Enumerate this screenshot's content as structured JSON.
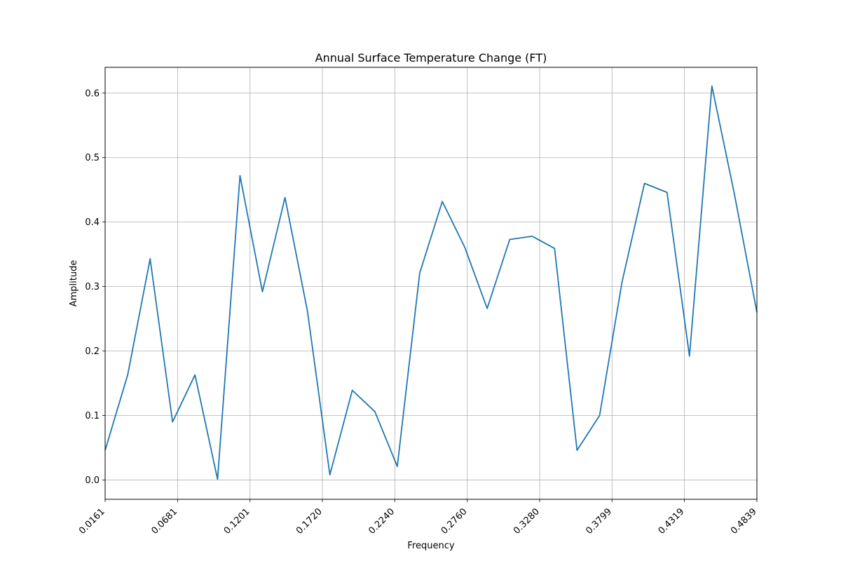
{
  "chart_data": {
    "type": "line",
    "title": "Annual Surface Temperature Change (FT)",
    "xlabel": "Frequency",
    "ylabel": "Amplitude",
    "xlim": [
      0.0161,
      0.4839
    ],
    "ylim": [
      -0.03,
      0.64
    ],
    "grid": true,
    "x_ticks": [
      "0.0161",
      "0.0681",
      "0.1201",
      "0.1720",
      "0.2240",
      "0.2760",
      "0.3280",
      "0.3799",
      "0.4319",
      "0.4839"
    ],
    "y_ticks": [
      "0.0",
      "0.1",
      "0.2",
      "0.3",
      "0.4",
      "0.5",
      "0.6"
    ],
    "series": [
      {
        "color": "#1f77b4",
        "x": [
          0.0161,
          0.0323,
          0.0484,
          0.0645,
          0.0806,
          0.0968,
          0.1129,
          0.129,
          0.1452,
          0.1613,
          0.1774,
          0.1935,
          0.2097,
          0.2258,
          0.2419,
          0.2581,
          0.2742,
          0.2903,
          0.3065,
          0.3226,
          0.3387,
          0.3548,
          0.371,
          0.3871,
          0.4032,
          0.4194,
          0.4355,
          0.4516,
          0.4677,
          0.4839
        ],
        "y": [
          0.046,
          0.163,
          0.343,
          0.09,
          0.163,
          0.001,
          0.472,
          0.292,
          0.438,
          0.262,
          0.008,
          0.139,
          0.106,
          0.021,
          0.321,
          0.432,
          0.361,
          0.266,
          0.373,
          0.378,
          0.359,
          0.046,
          0.1,
          0.307,
          0.46,
          0.446,
          0.192,
          0.611,
          0.444,
          0.26
        ]
      }
    ]
  }
}
